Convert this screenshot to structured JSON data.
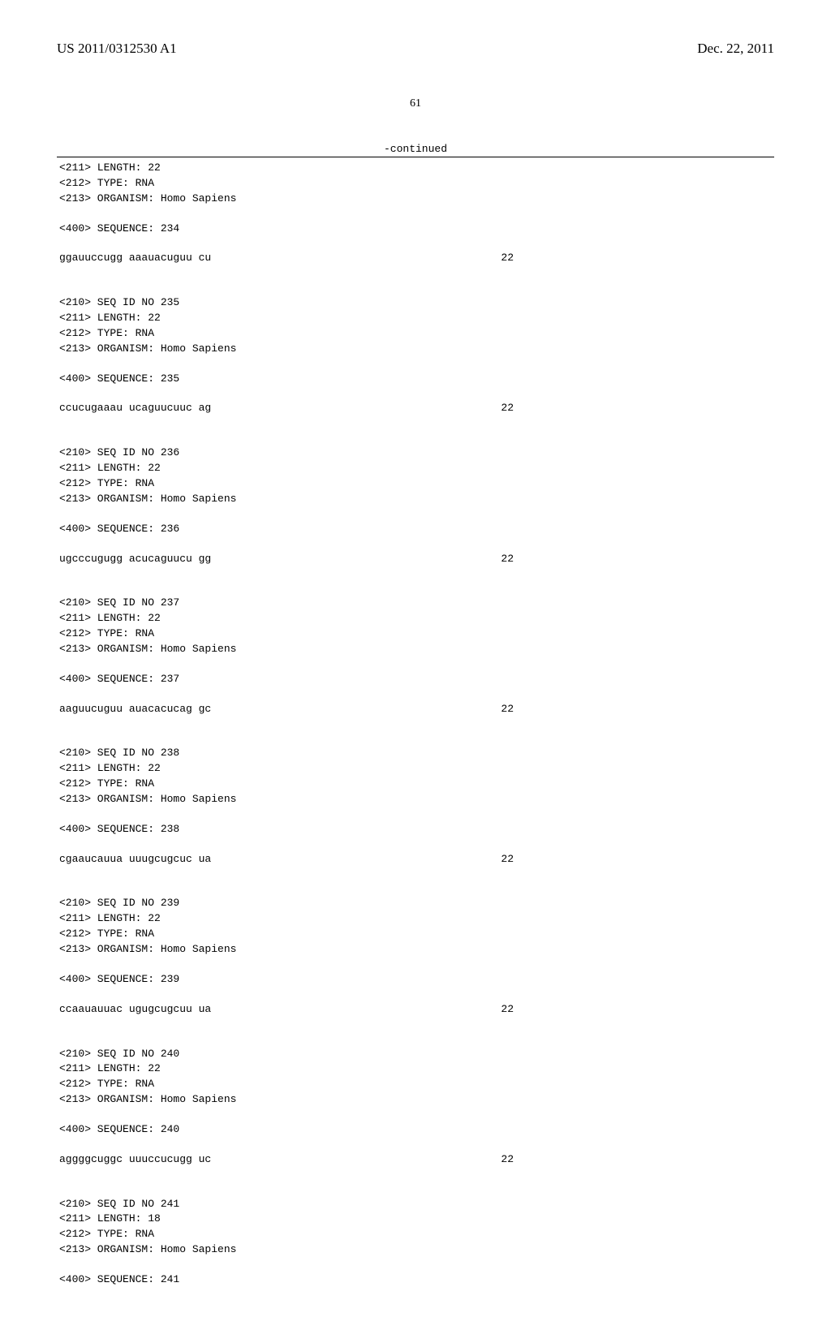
{
  "header": {
    "pub_number": "US 2011/0312530 A1",
    "pub_date": "Dec. 22, 2011",
    "page_number": "61",
    "continued_label": "-continued"
  },
  "entries": [
    {
      "leading": [
        "<211> LENGTH: 22",
        "<212> TYPE: RNA",
        "<213> ORGANISM: Homo Sapiens"
      ],
      "seq_header": "<400> SEQUENCE: 234",
      "sequence": "ggauuccugg aaauacuguu cu",
      "length": "22"
    },
    {
      "leading": [
        "<210> SEQ ID NO 235",
        "<211> LENGTH: 22",
        "<212> TYPE: RNA",
        "<213> ORGANISM: Homo Sapiens"
      ],
      "seq_header": "<400> SEQUENCE: 235",
      "sequence": "ccucugaaau ucaguucuuc ag",
      "length": "22"
    },
    {
      "leading": [
        "<210> SEQ ID NO 236",
        "<211> LENGTH: 22",
        "<212> TYPE: RNA",
        "<213> ORGANISM: Homo Sapiens"
      ],
      "seq_header": "<400> SEQUENCE: 236",
      "sequence": "ugcccugugg acucaguucu gg",
      "length": "22"
    },
    {
      "leading": [
        "<210> SEQ ID NO 237",
        "<211> LENGTH: 22",
        "<212> TYPE: RNA",
        "<213> ORGANISM: Homo Sapiens"
      ],
      "seq_header": "<400> SEQUENCE: 237",
      "sequence": "aaguucuguu auacacucag gc",
      "length": "22"
    },
    {
      "leading": [
        "<210> SEQ ID NO 238",
        "<211> LENGTH: 22",
        "<212> TYPE: RNA",
        "<213> ORGANISM: Homo Sapiens"
      ],
      "seq_header": "<400> SEQUENCE: 238",
      "sequence": "cgaaucauua uuugcugcuc ua",
      "length": "22"
    },
    {
      "leading": [
        "<210> SEQ ID NO 239",
        "<211> LENGTH: 22",
        "<212> TYPE: RNA",
        "<213> ORGANISM: Homo Sapiens"
      ],
      "seq_header": "<400> SEQUENCE: 239",
      "sequence": "ccaauauuac ugugcugcuu ua",
      "length": "22"
    },
    {
      "leading": [
        "<210> SEQ ID NO 240",
        "<211> LENGTH: 22",
        "<212> TYPE: RNA",
        "<213> ORGANISM: Homo Sapiens"
      ],
      "seq_header": "<400> SEQUENCE: 240",
      "sequence": "aggggcuggc uuuccucugg uc",
      "length": "22"
    },
    {
      "leading": [
        "<210> SEQ ID NO 241",
        "<211> LENGTH: 18",
        "<212> TYPE: RNA",
        "<213> ORGANISM: Homo Sapiens"
      ],
      "seq_header": "<400> SEQUENCE: 241",
      "sequence": "",
      "length": ""
    }
  ]
}
